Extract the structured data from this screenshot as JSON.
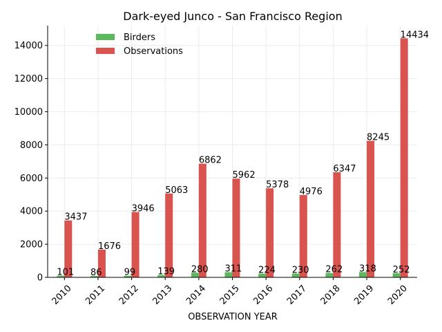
{
  "chart_data": {
    "type": "bar",
    "title": "Dark-eyed Junco - San Francisco Region",
    "xlabel": "OBSERVATION YEAR",
    "ylabel": "",
    "categories": [
      "2010",
      "2011",
      "2012",
      "2013",
      "2014",
      "2015",
      "2016",
      "2017",
      "2018",
      "2019",
      "2020"
    ],
    "series": [
      {
        "name": "Birders",
        "color": "#5cb85c",
        "values": [
          101,
          86,
          99,
          139,
          280,
          311,
          224,
          230,
          262,
          318,
          252
        ]
      },
      {
        "name": "Observations",
        "color": "#d9534f",
        "values": [
          3437,
          1676,
          3946,
          5063,
          6862,
          5962,
          5378,
          4976,
          6347,
          8245,
          14434
        ]
      }
    ],
    "ylim": [
      0,
      15200
    ],
    "yticks": [
      0,
      2000,
      4000,
      6000,
      8000,
      10000,
      12000,
      14000
    ],
    "grid": true,
    "legend_position": "top-left"
  }
}
